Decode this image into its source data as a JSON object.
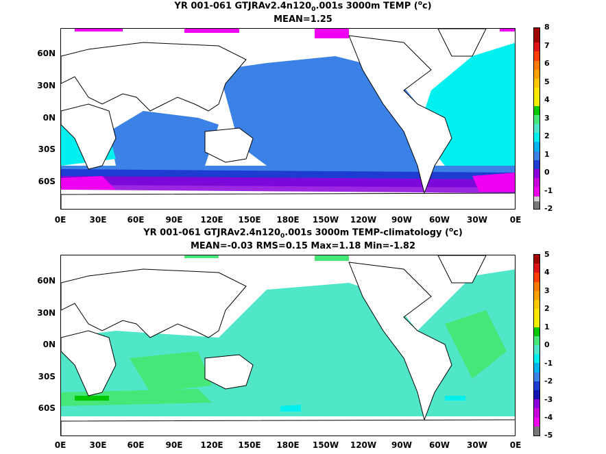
{
  "panel1": {
    "title_line1_pre": "YR 001-061 GTJRAv2.4n120",
    "title_line1_sub": "0",
    "title_line1_mid": ".001s 3000m TEMP (",
    "title_line1_sup": "o",
    "title_line1_post": "c)",
    "title_line2": "MEAN=1.25",
    "colorbar_labels": [
      "8",
      "7",
      "6",
      "5",
      "4",
      "3",
      "2",
      "1",
      "0",
      "-1",
      "-2"
    ]
  },
  "panel2": {
    "title_line1_pre": "YR 001-061 GTJRAv2.4n120",
    "title_line1_sub": "0",
    "title_line1_mid": ".001s 3000m TEMP-climatology (",
    "title_line1_sup": "o",
    "title_line1_post": "c)",
    "title_line2": "MEAN=-0.03   RMS=0.15   Max=1.18   Min=-1.82",
    "colorbar_labels": [
      "5",
      "4",
      "3",
      "2",
      "1",
      "0",
      "-1",
      "-2",
      "-3",
      "-4",
      "-5"
    ]
  },
  "axes": {
    "y_ticks": [
      "60N",
      "30N",
      "0N",
      "30S",
      "60S"
    ],
    "x_ticks": [
      "0E",
      "30E",
      "60E",
      "90E",
      "120E",
      "150E",
      "180E",
      "150W",
      "120W",
      "90W",
      "60W",
      "30W",
      "0E"
    ]
  },
  "colors": {
    "land": "#ffffff",
    "c_blue": "#3c82e6",
    "c_cyan": "#00f0f0",
    "c_lightcyan": "#50e6c8",
    "c_green": "#46e678",
    "c_purple": "#8c00dc",
    "c_magenta": "#f000f0",
    "c_navy": "#1e3cd2"
  }
}
